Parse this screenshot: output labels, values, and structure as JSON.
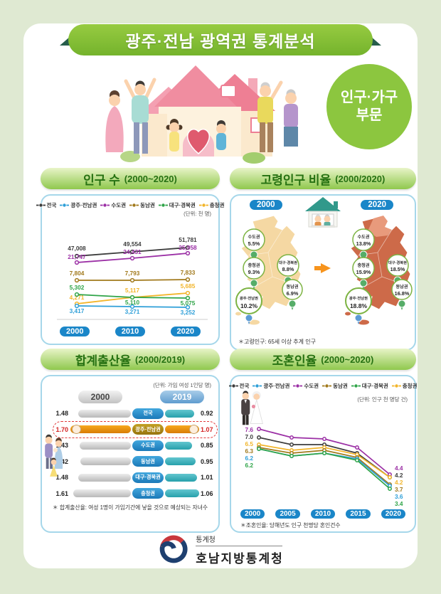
{
  "header": {
    "title": "광주·전남 광역권 통계분석",
    "badge_line1": "인구·가구",
    "badge_line2": "부문"
  },
  "footer": {
    "agency": "통계청",
    "office": "호남지방통계청"
  },
  "colors": {
    "banner_green": "#7db93a",
    "dark_green": "#265d4b",
    "panel_border": "#a6d7ea",
    "pill_blue": "#1a86c8",
    "highlight_red": "#e23b3b"
  },
  "legend_items": [
    {
      "label": "전국",
      "color": "#3c3c3c"
    },
    {
      "label": "광주·전남권",
      "color": "#2e9fd8"
    },
    {
      "label": "수도권",
      "color": "#9b2fa5"
    },
    {
      "label": "동남권",
      "color": "#a1791b"
    },
    {
      "label": "대구·경북권",
      "color": "#2fa448"
    },
    {
      "label": "충청권",
      "color": "#f2b52a"
    }
  ],
  "chart_data": [
    {
      "id": "population",
      "type": "line",
      "title": "인구 수",
      "period": "(2000~2020)",
      "unit": "(단위: 천 명)",
      "x": [
        "2000",
        "2010",
        "2020"
      ],
      "series": [
        {
          "name": "전국",
          "color": "#3c3c3c",
          "values": [
            47008,
            49554,
            51781
          ]
        },
        {
          "name": "수도권",
          "color": "#9b2fa5",
          "values": [
            21747,
            24431,
            25958
          ]
        },
        {
          "name": "동남권",
          "color": "#a1791b",
          "values": [
            7804,
            7793,
            7833
          ]
        },
        {
          "name": "충청권",
          "color": "#f2b52a",
          "values": [
            4271,
            5117,
            5685
          ]
        },
        {
          "name": "대구·경북권",
          "color": "#2fa448",
          "values": [
            5302,
            5110,
            5075
          ]
        },
        {
          "name": "광주·전남권",
          "color": "#2e9fd8",
          "values": [
            3417,
            3271,
            3252
          ]
        }
      ]
    },
    {
      "id": "elderly-ratio",
      "type": "map-comparison",
      "title": "고령인구 비율",
      "period": "(2000/2020)",
      "footnote": "＊고령인구: 65세 이상 추계 인구",
      "colors": {
        "map_2000": "#f5d8a3",
        "map_2020": "#cd6a49"
      },
      "maps": [
        {
          "year": "2000",
          "regions": [
            {
              "name": "수도권",
              "value": "5.5%"
            },
            {
              "name": "충청권",
              "value": "9.3%"
            },
            {
              "name": "대구·경북권",
              "value": "8.8%"
            },
            {
              "name": "동남권",
              "value": "6.9%"
            },
            {
              "name": "광주·전남권",
              "value": "10.2%",
              "highlight": true
            }
          ]
        },
        {
          "year": "2020",
          "regions": [
            {
              "name": "수도권",
              "value": "13.8%"
            },
            {
              "name": "충청권",
              "value": "15.9%"
            },
            {
              "name": "대구·경북권",
              "value": "18.5%"
            },
            {
              "name": "동남권",
              "value": "16.8%"
            },
            {
              "name": "광주·전남권",
              "value": "18.8%",
              "highlight": true
            }
          ]
        }
      ]
    },
    {
      "id": "fertility",
      "type": "bar-comparison",
      "title": "합계출산율",
      "period": "(2000/2019)",
      "unit": "(단위: 가임 여성 1인당 명)",
      "col_years": [
        "2000",
        "2019"
      ],
      "rows": [
        {
          "region": "전국",
          "v2000": 1.48,
          "v2019": 0.92
        },
        {
          "region": "광주·전남권",
          "v2000": 1.7,
          "v2019": 1.07,
          "highlight": true
        },
        {
          "region": "수도권",
          "v2000": 1.43,
          "v2019": 0.85
        },
        {
          "region": "동남권",
          "v2000": 1.42,
          "v2019": 0.95
        },
        {
          "region": "대구·경북권",
          "v2000": 1.48,
          "v2019": 1.01
        },
        {
          "region": "충청권",
          "v2000": 1.61,
          "v2019": 1.06
        }
      ],
      "footnote": "＊ 합계출산율: 여성 1명이 가임기간에 낳을 것으로 예상되는 자녀수"
    },
    {
      "id": "marriage",
      "type": "line",
      "title": "조혼인율",
      "period": "(2000~2020)",
      "unit": "(단위: 인구 천 명당 건)",
      "x": [
        "2000",
        "2005",
        "2010",
        "2015",
        "2020"
      ],
      "series": [
        {
          "name": "수도권",
          "color": "#9b2fa5",
          "values": [
            7.6,
            7.0,
            6.9,
            6.3,
            4.4
          ]
        },
        {
          "name": "전국",
          "color": "#3c3c3c",
          "values": [
            7.0,
            6.5,
            6.5,
            5.9,
            4.2
          ]
        },
        {
          "name": "충청권",
          "color": "#f2b52a",
          "values": [
            6.5,
            6.1,
            6.3,
            5.8,
            4.2
          ]
        },
        {
          "name": "동남권",
          "color": "#a1791b",
          "values": [
            6.3,
            5.9,
            6.1,
            5.6,
            3.7
          ]
        },
        {
          "name": "광주·전남권",
          "color": "#2e9fd8",
          "values": [
            6.2,
            5.7,
            5.9,
            5.5,
            3.6
          ]
        },
        {
          "name": "대구·경북권",
          "color": "#2fa448",
          "values": [
            6.2,
            5.7,
            5.9,
            5.4,
            3.4
          ]
        }
      ],
      "footnote": "＊조혼인율: 당해년도 인구 천명당 혼인건수"
    }
  ]
}
